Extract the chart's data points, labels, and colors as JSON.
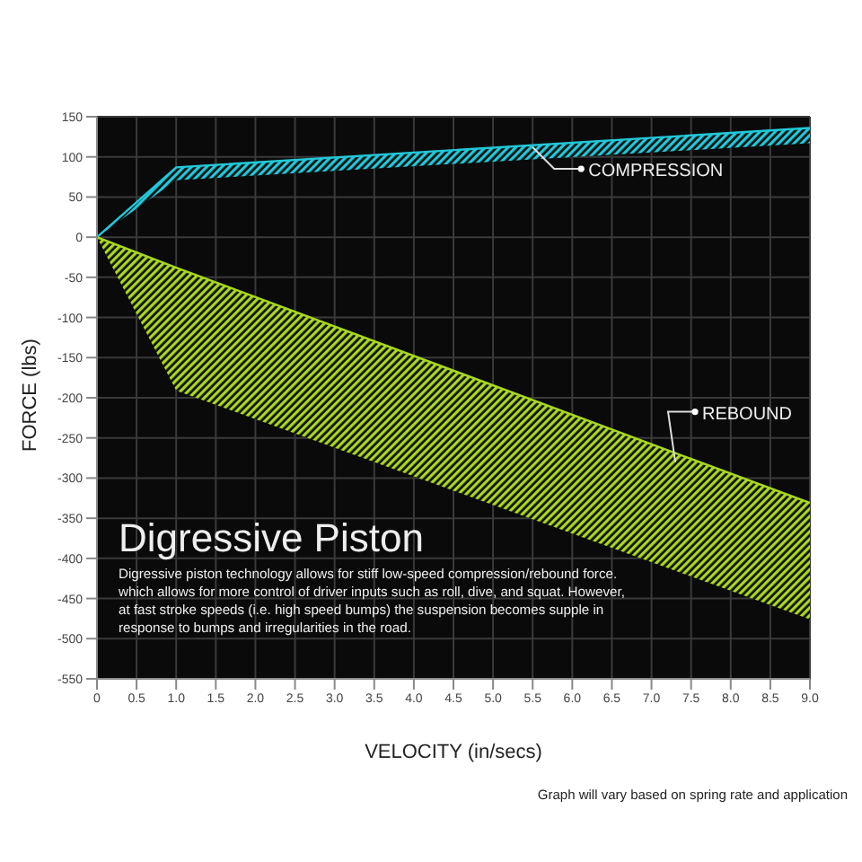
{
  "chart_data": {
    "type": "line",
    "title": "Digressive Piston",
    "xlabel": "VELOCITY (in/secs)",
    "ylabel": "FORCE (lbs)",
    "x": [
      0,
      1,
      9
    ],
    "series": [
      {
        "color": "#22c8d8",
        "values": [
          0,
          87,
          136
        ],
        "lower": [
          0,
          71,
          117
        ],
        "upper": [
          0,
          87,
          136
        ]
      },
      {
        "color": "#a8d820",
        "values": [
          0,
          -38,
          -331
        ],
        "lower": [
          0,
          -191,
          -476
        ],
        "upper": [
          0,
          -38,
          -331
        ]
      }
    ],
    "xlim": [
      0,
      9
    ],
    "xticks": [
      0,
      0.5,
      {
        "value": 1,
        "label": "1.0"
      },
      1.5,
      {
        "value": 2,
        "label": "2.0"
      },
      2.5,
      {
        "value": 3,
        "label": "3.0"
      },
      3.5,
      {
        "value": 4,
        "label": "4.0"
      },
      4.5,
      {
        "value": 5,
        "label": "5.0"
      },
      5.5,
      {
        "value": 6,
        "label": "6.0"
      },
      6.5,
      {
        "value": 7,
        "label": "7.0"
      },
      7.5,
      {
        "value": 8,
        "label": "8.0"
      },
      8.5,
      {
        "value": 9,
        "label": "9.0"
      }
    ],
    "ylim": [
      -550,
      150
    ],
    "yticks": [
      -550,
      -500,
      -450,
      -400,
      -350,
      -300,
      -250,
      -200,
      -150,
      -100,
      -50,
      0,
      50,
      100,
      150
    ],
    "grid": true,
    "annotations": [
      {
        "text": "COMPRESSION",
        "x": 5.5,
        "y": 112
      },
      {
        "text": "REBOUND",
        "x": 7.3,
        "y": -280
      },
      "Digressive piston technology allows for stiff low-speed compression/rebound force. which allows for more control of driver inputs such as roll, dive, and squat. However, at fast stroke speeds (i.e. high speed bumps) the suspension becomes supple in response to bumps and irregularities in the road.",
      "Graph will vary based on spring rate and application"
    ]
  }
}
